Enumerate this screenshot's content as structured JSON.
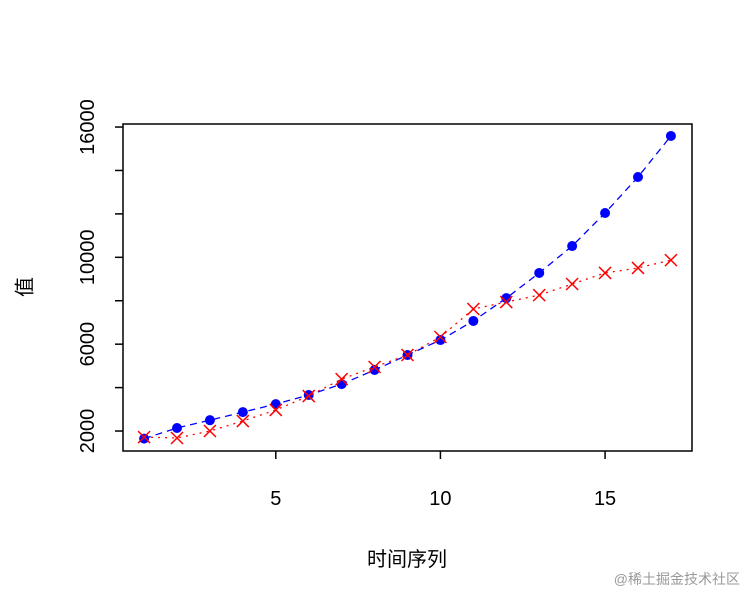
{
  "chart_data": {
    "type": "line",
    "xlabel": "时间序列",
    "ylabel": "值",
    "x": [
      1,
      2,
      3,
      4,
      5,
      6,
      7,
      8,
      9,
      10,
      11,
      12,
      13,
      14,
      15,
      16,
      17
    ],
    "series": [
      {
        "color": "#0000ff",
        "marker": "circle",
        "linestyle": "dashed",
        "values": [
          1650,
          2140,
          2500,
          2870,
          3240,
          3660,
          4160,
          4810,
          5500,
          6190,
          7070,
          8120,
          9280,
          10520,
          12040,
          13700,
          15590
        ]
      },
      {
        "color": "#ff0000",
        "marker": "x",
        "linestyle": "dotted",
        "values": [
          1720,
          1680,
          2000,
          2460,
          2970,
          3610,
          4390,
          4950,
          5500,
          6330,
          7620,
          7940,
          8260,
          8770,
          9280,
          9510,
          9870
        ]
      }
    ],
    "xlim": [
      0.36,
      17.64
    ],
    "ylim": [
      1080,
      16140
    ],
    "xticks": [
      5,
      10,
      15
    ],
    "yticks": [
      2000,
      6000,
      10000,
      16000
    ],
    "yminorticks": [
      4000,
      8000,
      12000,
      14000
    ]
  },
  "watermark": "@稀土掘金技术社区"
}
